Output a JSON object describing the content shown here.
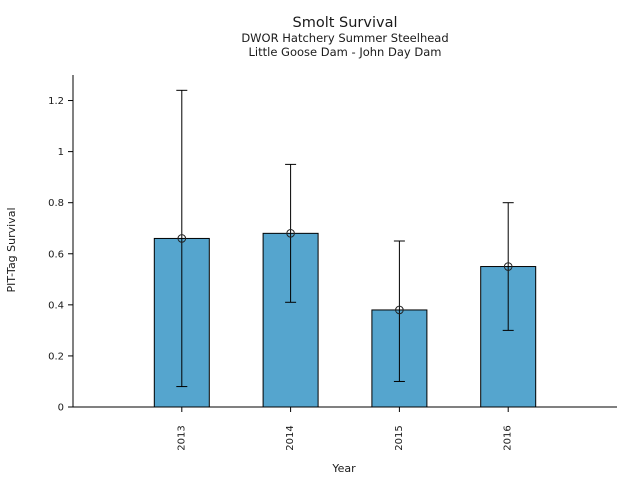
{
  "chart_data": {
    "type": "bar",
    "title": "Smolt Survival",
    "subtitle": [
      "DWOR Hatchery Summer Steelhead",
      "Little Goose Dam - John Day Dam"
    ],
    "xlabel": "Year",
    "ylabel": "PIT-Tag Survival",
    "categories": [
      "2013",
      "2014",
      "2015",
      "2016"
    ],
    "values": [
      0.66,
      0.68,
      0.38,
      0.55
    ],
    "error_bars": {
      "low": [
        0.08,
        0.41,
        0.1,
        0.3
      ],
      "high": [
        1.24,
        0.95,
        0.65,
        0.8
      ]
    },
    "ytick_labels": [
      "0",
      "0.2",
      "0.4",
      "0.6",
      "0.8",
      "1",
      "1.2"
    ],
    "ytick_values": [
      0,
      0.2,
      0.4,
      0.6,
      0.8,
      1.0,
      1.2
    ],
    "ylim": [
      0,
      1.3
    ],
    "grid": false,
    "legend": null,
    "marker": "open-circle",
    "colors": {
      "bar_fill": "#55A5CE",
      "bar_edge": "#000000",
      "error_line": "#000000",
      "axis": "#000000",
      "text": "#1a1a1a"
    }
  }
}
